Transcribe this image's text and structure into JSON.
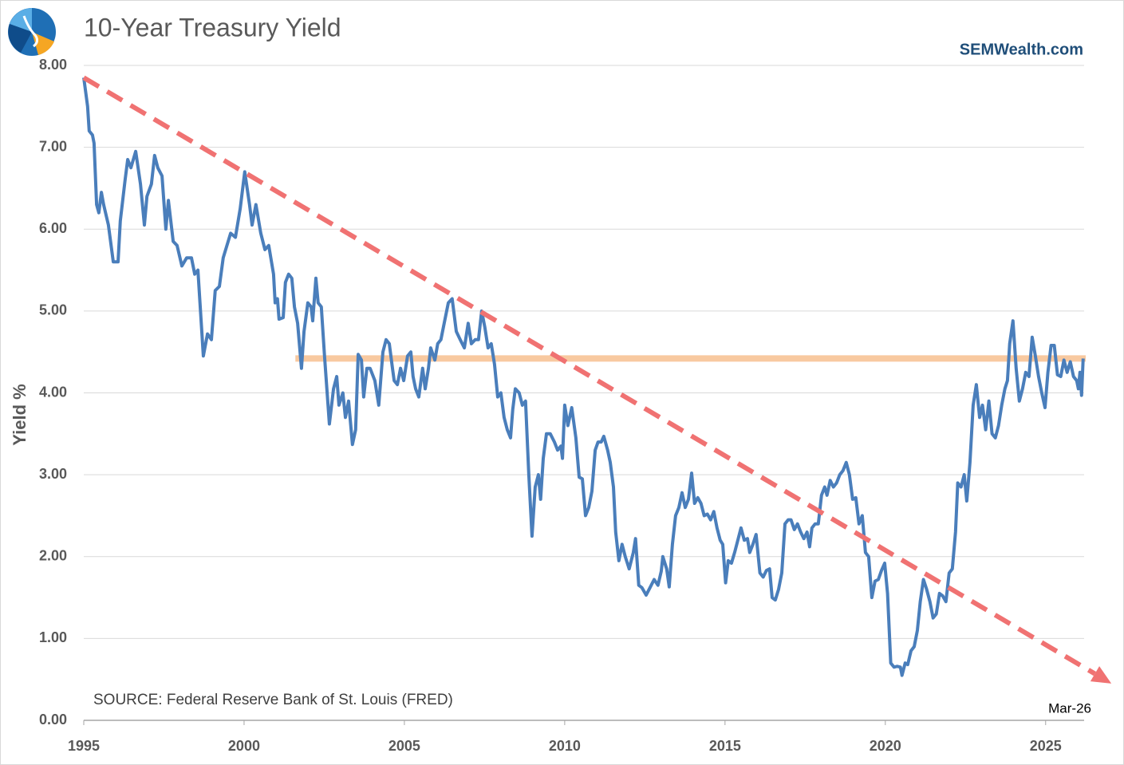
{
  "chart_data": {
    "type": "line",
    "title": "10-Year Treasury Yield",
    "brand": "SEMWealth.com",
    "y_label": "Yield %",
    "source": "SOURCE:  Federal Reserve Bank of St. Louis (FRED)",
    "end_label": "Mar-26",
    "color": "#4a7ebb",
    "grid": true,
    "xlim": [
      1995,
      2026.25
    ],
    "ylim": [
      0,
      8
    ],
    "xticks": [
      1995,
      2000,
      2005,
      2010,
      2015,
      2020,
      2025
    ],
    "yticks": [
      {
        "value": 0,
        "label": "0.00"
      },
      {
        "value": 1,
        "label": "1.00"
      },
      {
        "value": 2,
        "label": "2.00"
      },
      {
        "value": 3,
        "label": "3.00"
      },
      {
        "value": 4,
        "label": "4.00"
      },
      {
        "value": 5,
        "label": "5.00"
      },
      {
        "value": 6,
        "label": "6.00"
      },
      {
        "value": 7,
        "label": "7.00"
      },
      {
        "value": 8,
        "label": "8.00"
      }
    ],
    "trend_line": {
      "color": "#f07272",
      "x": [
        1995,
        2027.05
      ],
      "y": [
        7.85,
        0.45
      ]
    },
    "level_line": {
      "color": "#f8c9a0",
      "x": [
        2001.6,
        2026.25
      ],
      "value": 4.42
    },
    "x": [
      1995.0,
      1995.12,
      1995.17,
      1995.27,
      1995.32,
      1995.4,
      1995.47,
      1995.55,
      1995.62,
      1995.77,
      1995.92,
      1996.07,
      1996.14,
      1996.29,
      1996.37,
      1996.47,
      1996.62,
      1996.77,
      1996.89,
      1996.97,
      1997.11,
      1997.21,
      1997.31,
      1997.44,
      1997.56,
      1997.64,
      1997.79,
      1997.91,
      1998.06,
      1998.21,
      1998.36,
      1998.46,
      1998.56,
      1998.73,
      1998.86,
      1998.98,
      1999.1,
      1999.23,
      1999.35,
      1999.58,
      1999.73,
      1999.88,
      2000.02,
      2000.17,
      2000.25,
      2000.37,
      2000.52,
      2000.65,
      2000.77,
      2000.92,
      2000.97,
      2001.04,
      2001.09,
      2001.22,
      2001.29,
      2001.39,
      2001.49,
      2001.57,
      2001.67,
      2001.79,
      2001.87,
      2001.99,
      2002.09,
      2002.14,
      2002.24,
      2002.31,
      2002.41,
      2002.51,
      2002.66,
      2002.79,
      2002.89,
      2002.96,
      2003.08,
      2003.16,
      2003.26,
      2003.38,
      2003.48,
      2003.56,
      2003.66,
      2003.73,
      2003.83,
      2003.93,
      2004.08,
      2004.2,
      2004.33,
      2004.43,
      2004.53,
      2004.63,
      2004.68,
      2004.78,
      2004.88,
      2004.98,
      2005.1,
      2005.2,
      2005.27,
      2005.35,
      2005.45,
      2005.57,
      2005.65,
      2005.75,
      2005.82,
      2005.95,
      2006.04,
      2006.14,
      2006.24,
      2006.37,
      2006.49,
      2006.62,
      2006.74,
      2006.87,
      2006.99,
      2007.09,
      2007.21,
      2007.31,
      2007.41,
      2007.51,
      2007.61,
      2007.71,
      2007.81,
      2007.91,
      2008.01,
      2008.11,
      2008.21,
      2008.31,
      2008.38,
      2008.46,
      2008.58,
      2008.68,
      2008.78,
      2008.88,
      2008.98,
      2009.08,
      2009.18,
      2009.25,
      2009.33,
      2009.43,
      2009.55,
      2009.68,
      2009.78,
      2009.88,
      2009.93,
      2010.0,
      2010.1,
      2010.22,
      2010.35,
      2010.45,
      2010.55,
      2010.65,
      2010.75,
      2010.85,
      2010.95,
      2011.04,
      2011.14,
      2011.22,
      2011.34,
      2011.42,
      2011.52,
      2011.59,
      2011.69,
      2011.79,
      2011.89,
      2012.01,
      2012.14,
      2012.21,
      2012.31,
      2012.41,
      2012.54,
      2012.66,
      2012.79,
      2012.91,
      2013.01,
      2013.06,
      2013.18,
      2013.26,
      2013.36,
      2013.46,
      2013.56,
      2013.66,
      2013.76,
      2013.86,
      2013.96,
      2014.05,
      2014.15,
      2014.25,
      2014.35,
      2014.45,
      2014.55,
      2014.65,
      2014.75,
      2014.85,
      2014.93,
      2015.02,
      2015.1,
      2015.2,
      2015.3,
      2015.4,
      2015.5,
      2015.6,
      2015.7,
      2015.77,
      2015.87,
      2015.97,
      2016.09,
      2016.19,
      2016.29,
      2016.39,
      2016.47,
      2016.57,
      2016.67,
      2016.77,
      2016.87,
      2016.97,
      2017.06,
      2017.16,
      2017.26,
      2017.36,
      2017.46,
      2017.56,
      2017.64,
      2017.71,
      2017.81,
      2017.91,
      2018.01,
      2018.11,
      2018.18,
      2018.28,
      2018.38,
      2018.48,
      2018.58,
      2018.68,
      2018.78,
      2018.88,
      2018.98,
      2019.08,
      2019.18,
      2019.28,
      2019.38,
      2019.48,
      2019.58,
      2019.68,
      2019.78,
      2019.88,
      2019.98,
      2020.07,
      2020.17,
      2020.27,
      2020.37,
      2020.47,
      2020.52,
      2020.62,
      2020.7,
      2020.8,
      2020.9,
      2021.0,
      2021.09,
      2021.19,
      2021.29,
      2021.39,
      2021.49,
      2021.59,
      2021.69,
      2021.79,
      2021.89,
      2021.99,
      2022.09,
      2022.19,
      2022.26,
      2022.36,
      2022.46,
      2022.54,
      2022.64,
      2022.74,
      2022.84,
      2022.94,
      2023.03,
      2023.13,
      2023.23,
      2023.33,
      2023.43,
      2023.53,
      2023.63,
      2023.73,
      2023.81,
      2023.88,
      2023.98,
      2024.08,
      2024.18,
      2024.28,
      2024.38,
      2024.48,
      2024.58,
      2024.68,
      2024.78,
      2024.88,
      2024.98,
      2025.07,
      2025.17,
      2025.27,
      2025.37,
      2025.47,
      2025.57,
      2025.67,
      2025.77,
      2025.87,
      2025.97,
      2026.02,
      2026.07,
      2026.12,
      2026.17
    ],
    "values": [
      7.85,
      7.5,
      7.2,
      7.15,
      7.05,
      6.3,
      6.2,
      6.45,
      6.3,
      6.05,
      5.6,
      5.6,
      6.1,
      6.6,
      6.85,
      6.75,
      6.95,
      6.55,
      6.05,
      6.4,
      6.55,
      6.9,
      6.75,
      6.65,
      6.0,
      6.35,
      5.85,
      5.8,
      5.55,
      5.65,
      5.65,
      5.45,
      5.5,
      4.45,
      4.72,
      4.65,
      5.25,
      5.3,
      5.65,
      5.95,
      5.9,
      6.25,
      6.7,
      6.3,
      6.05,
      6.3,
      5.95,
      5.75,
      5.8,
      5.45,
      5.1,
      5.15,
      4.9,
      4.92,
      5.35,
      5.45,
      5.4,
      5.05,
      4.85,
      4.3,
      4.75,
      5.1,
      5.05,
      4.88,
      5.4,
      5.1,
      5.05,
      4.45,
      3.62,
      4.05,
      4.2,
      3.85,
      4.0,
      3.7,
      3.9,
      3.37,
      3.55,
      4.47,
      4.4,
      3.95,
      4.3,
      4.3,
      4.15,
      3.85,
      4.5,
      4.65,
      4.6,
      4.3,
      4.15,
      4.1,
      4.3,
      4.15,
      4.45,
      4.5,
      4.2,
      4.05,
      3.95,
      4.3,
      4.05,
      4.3,
      4.55,
      4.4,
      4.6,
      4.65,
      4.85,
      5.1,
      5.15,
      4.75,
      4.65,
      4.55,
      4.85,
      4.6,
      4.65,
      4.65,
      5.0,
      4.8,
      4.55,
      4.6,
      4.35,
      3.95,
      4.0,
      3.7,
      3.55,
      3.45,
      3.8,
      4.05,
      4.0,
      3.85,
      3.9,
      3.0,
      2.25,
      2.85,
      3.0,
      2.7,
      3.2,
      3.5,
      3.5,
      3.4,
      3.3,
      3.35,
      3.2,
      3.85,
      3.6,
      3.82,
      3.45,
      2.97,
      2.95,
      2.5,
      2.6,
      2.8,
      3.3,
      3.4,
      3.4,
      3.47,
      3.3,
      3.15,
      2.85,
      2.3,
      1.95,
      2.15,
      2.0,
      1.85,
      2.05,
      2.22,
      1.65,
      1.62,
      1.53,
      1.62,
      1.72,
      1.65,
      1.82,
      2.0,
      1.85,
      1.63,
      2.15,
      2.5,
      2.6,
      2.78,
      2.6,
      2.7,
      3.02,
      2.65,
      2.72,
      2.65,
      2.5,
      2.52,
      2.45,
      2.55,
      2.35,
      2.2,
      2.15,
      1.68,
      1.95,
      1.92,
      2.05,
      2.2,
      2.35,
      2.2,
      2.22,
      2.05,
      2.15,
      2.27,
      1.8,
      1.75,
      1.83,
      1.85,
      1.5,
      1.47,
      1.6,
      1.8,
      2.4,
      2.45,
      2.45,
      2.33,
      2.4,
      2.3,
      2.22,
      2.3,
      2.12,
      2.35,
      2.4,
      2.4,
      2.75,
      2.85,
      2.75,
      2.93,
      2.85,
      2.9,
      3.0,
      3.05,
      3.15,
      3.0,
      2.7,
      2.72,
      2.4,
      2.5,
      2.05,
      2.0,
      1.5,
      1.7,
      1.72,
      1.83,
      1.92,
      1.55,
      0.7,
      0.65,
      0.66,
      0.65,
      0.55,
      0.7,
      0.68,
      0.85,
      0.9,
      1.1,
      1.45,
      1.72,
      1.6,
      1.45,
      1.25,
      1.3,
      1.55,
      1.52,
      1.45,
      1.8,
      1.85,
      2.3,
      2.9,
      2.85,
      3.0,
      2.68,
      3.15,
      3.85,
      4.1,
      3.7,
      3.85,
      3.55,
      3.9,
      3.5,
      3.45,
      3.6,
      3.85,
      4.05,
      4.15,
      4.6,
      4.88,
      4.3,
      3.9,
      4.05,
      4.25,
      4.2,
      4.68,
      4.45,
      4.2,
      4.0,
      3.82,
      4.25,
      4.58,
      4.58,
      4.22,
      4.2,
      4.4,
      4.25,
      4.38,
      4.2,
      4.15,
      4.05,
      4.25,
      3.97,
      4.42
    ]
  }
}
